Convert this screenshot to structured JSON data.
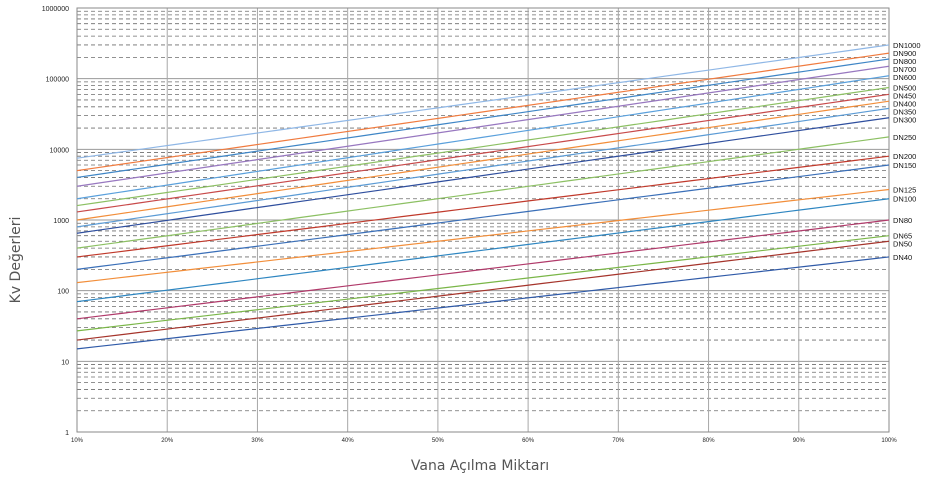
{
  "chart_data": {
    "type": "line",
    "title": "",
    "xlabel": "Vana Açılma Miktarı",
    "ylabel": "Kv Değerleri",
    "x": [
      10,
      20,
      30,
      40,
      50,
      60,
      70,
      80,
      90,
      100
    ],
    "x_tick_labels": [
      "10%",
      "20%",
      "30%",
      "40%",
      "50%",
      "60%",
      "70%",
      "80%",
      "90%",
      "100%"
    ],
    "xlim": [
      10,
      100
    ],
    "y_scale": "log",
    "ylim": [
      1,
      1000000
    ],
    "y_tick_values": [
      1,
      10,
      100,
      1000,
      10000,
      100000,
      1000000
    ],
    "y_tick_labels": [
      "1",
      "10",
      "100",
      "1000",
      "10000",
      "100000",
      "1000000"
    ],
    "grid": true,
    "legend": "labels at right end of each line",
    "series": [
      {
        "name": "DN1000",
        "color": "#8fb7e6",
        "start": 7500,
        "end": 300000
      },
      {
        "name": "DN900",
        "color": "#f07b3f",
        "start": 5000,
        "end": 230000
      },
      {
        "name": "DN800",
        "color": "#3f86c6",
        "start": 4000,
        "end": 190000
      },
      {
        "name": "DN700",
        "color": "#9878c0",
        "start": 3000,
        "end": 150000
      },
      {
        "name": "DN600",
        "color": "#5aa0dc",
        "start": 2000,
        "end": 110000
      },
      {
        "name": "DN500",
        "color": "#8cc063",
        "start": 1600,
        "end": 75000
      },
      {
        "name": "DN450",
        "color": "#c84a4a",
        "start": 1300,
        "end": 60000
      },
      {
        "name": "DN400",
        "color": "#f28e3a",
        "start": 1000,
        "end": 48000
      },
      {
        "name": "DN350",
        "color": "#5b9bd5",
        "start": 800,
        "end": 38000
      },
      {
        "name": "DN300",
        "color": "#2f4f9e",
        "start": 650,
        "end": 28000
      },
      {
        "name": "DN250",
        "color": "#8cc063",
        "start": 400,
        "end": 15000
      },
      {
        "name": "DN200",
        "color": "#c0392b",
        "start": 300,
        "end": 8000
      },
      {
        "name": "DN150",
        "color": "#3a6fb8",
        "start": 200,
        "end": 6000
      },
      {
        "name": "DN125",
        "color": "#f28e3a",
        "start": 130,
        "end": 2700
      },
      {
        "name": "DN100",
        "color": "#2e86c1",
        "start": 70,
        "end": 2000
      },
      {
        "name": "DN80",
        "color": "#b03a6a",
        "start": 40,
        "end": 1000
      },
      {
        "name": "DN65",
        "color": "#7ab648",
        "start": 27,
        "end": 600
      },
      {
        "name": "DN50",
        "color": "#a5342b",
        "start": 20,
        "end": 500
      },
      {
        "name": "DN40",
        "color": "#2f5aa8",
        "start": 15,
        "end": 300
      }
    ]
  }
}
